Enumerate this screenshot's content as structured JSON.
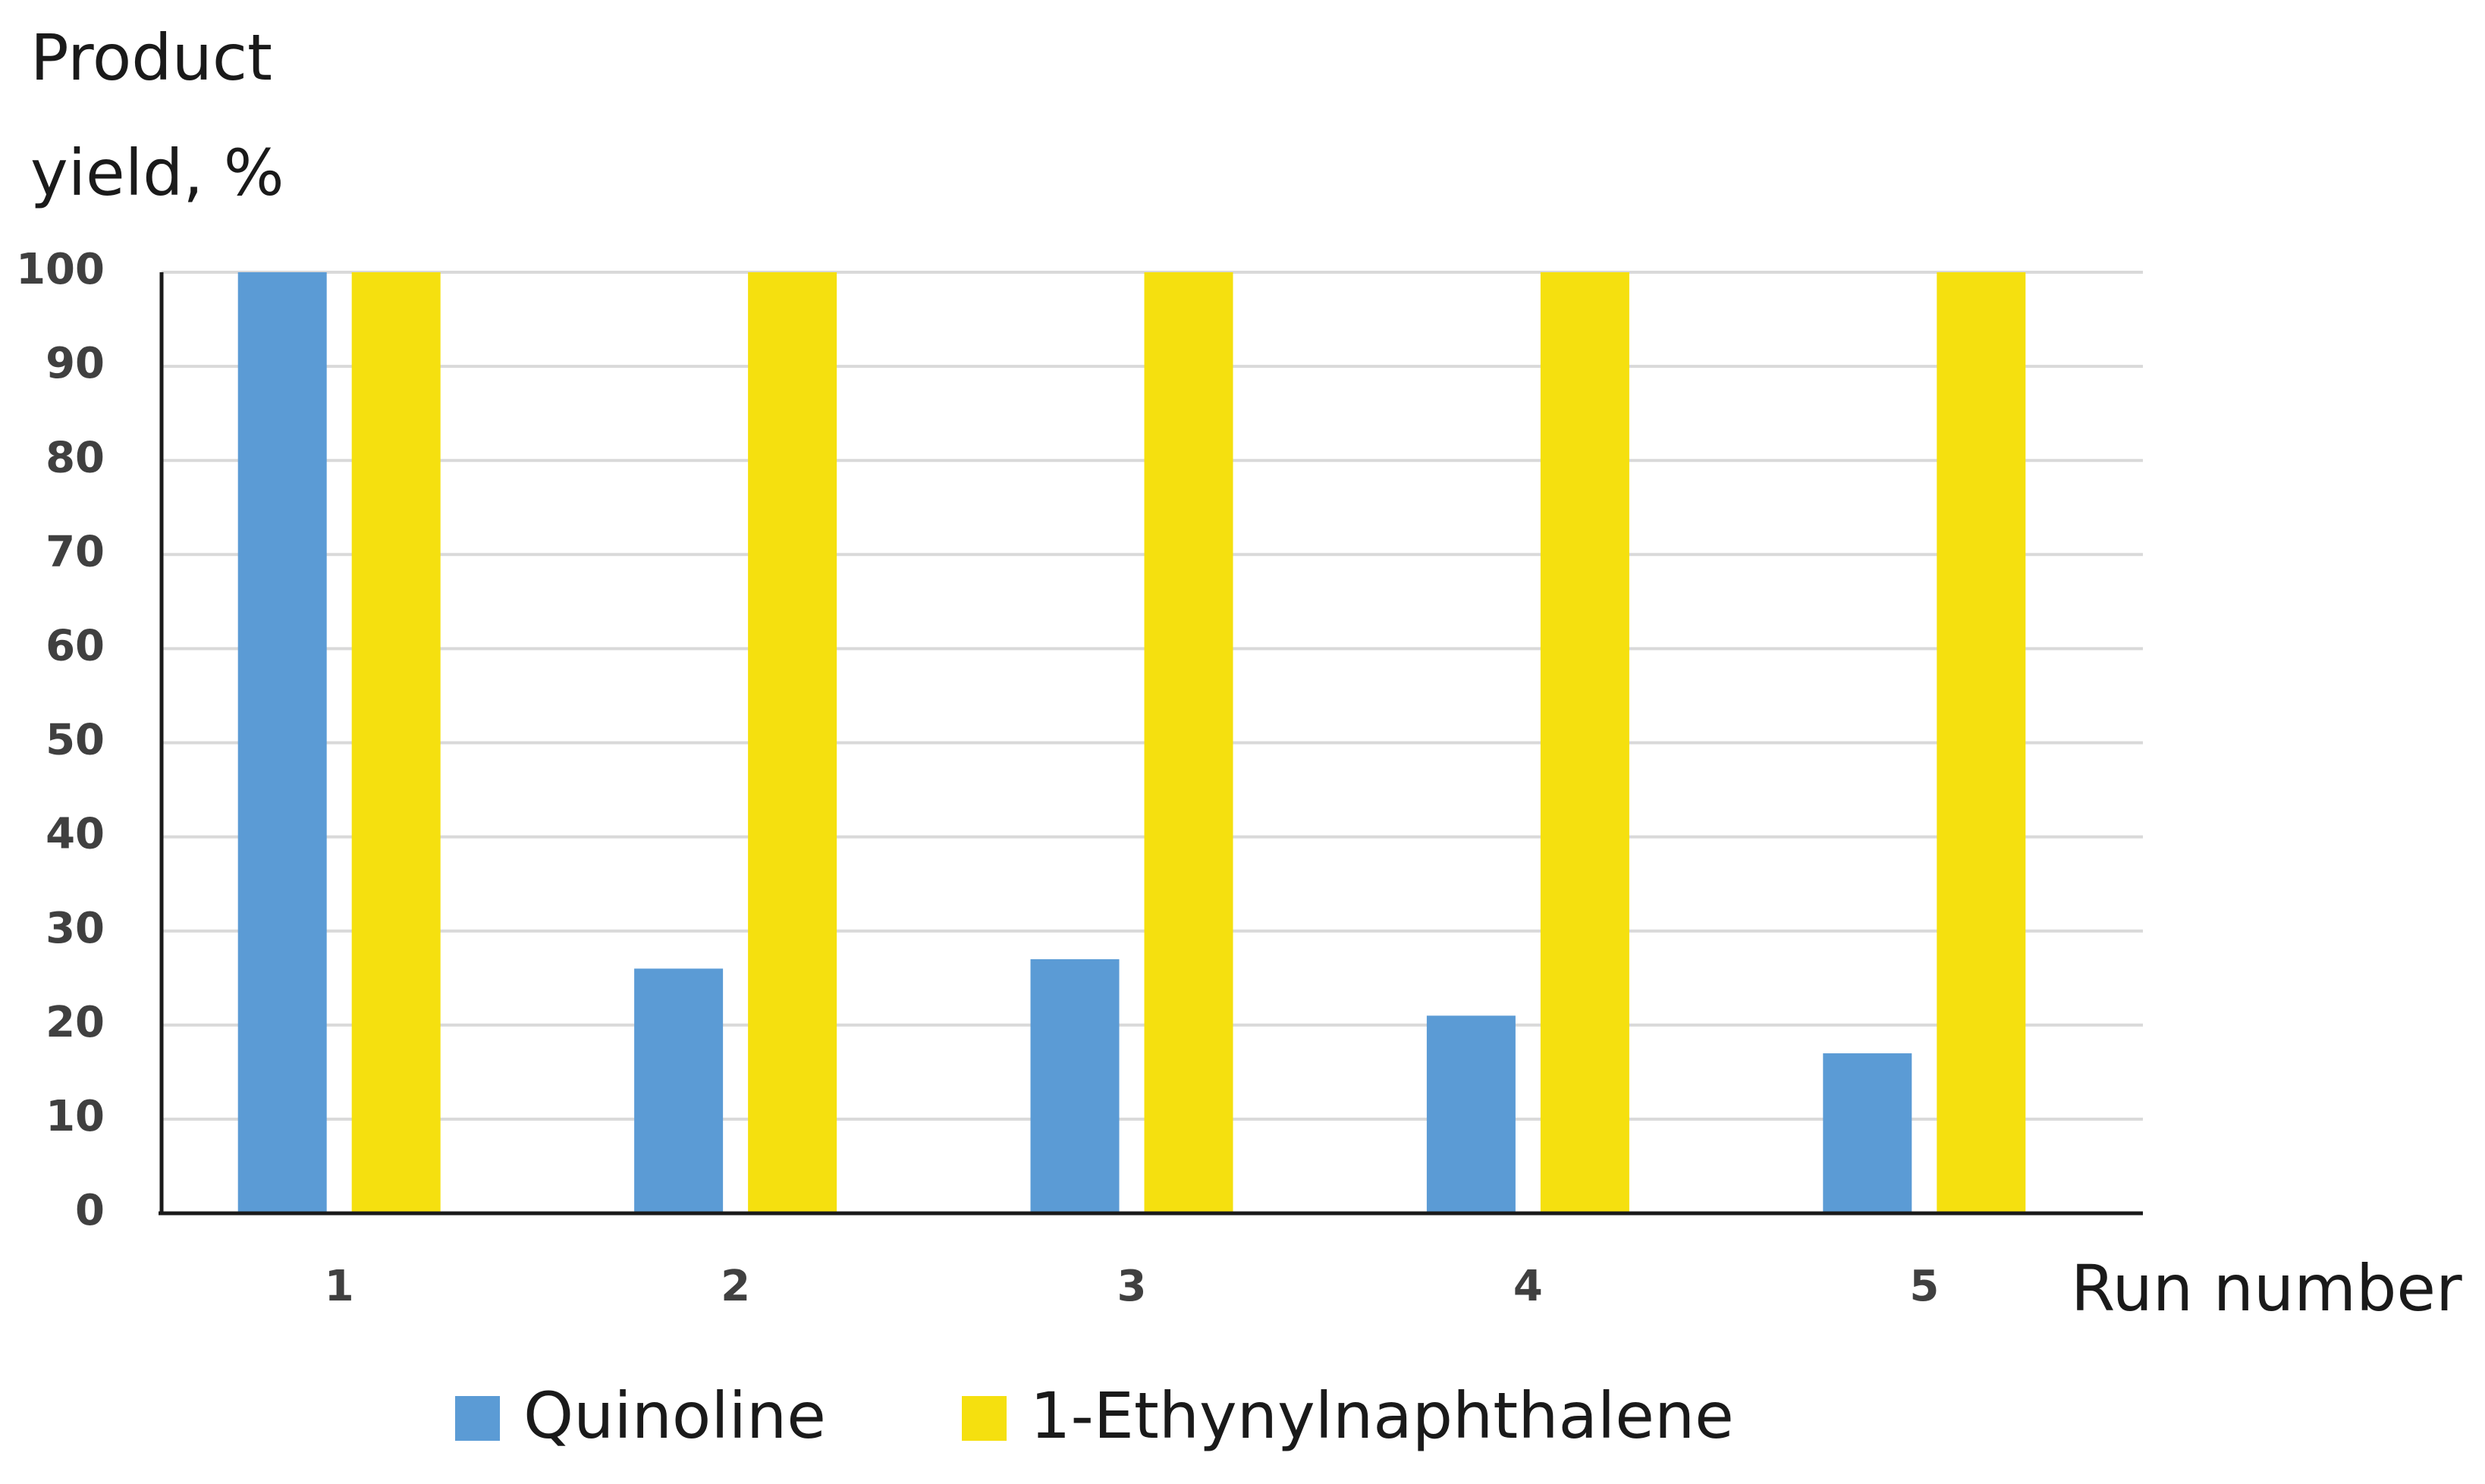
{
  "chart_data": {
    "type": "bar",
    "ylabel": "Product yield, %",
    "xlabel": "Run number",
    "categories": [
      "1",
      "2",
      "3",
      "4",
      "5"
    ],
    "series": [
      {
        "name": "Quinoline",
        "color": "#5b9bd5",
        "values": [
          100,
          26,
          27,
          21,
          17
        ]
      },
      {
        "name": "1-Ethynylnaphthalene",
        "color": "#f5e00f",
        "values": [
          100,
          100,
          100,
          100,
          100
        ]
      }
    ],
    "ylim": [
      0,
      100
    ],
    "yticks": [
      0,
      10,
      20,
      30,
      40,
      50,
      60,
      70,
      80,
      90,
      100
    ],
    "grid": true,
    "legend": "bottom"
  }
}
